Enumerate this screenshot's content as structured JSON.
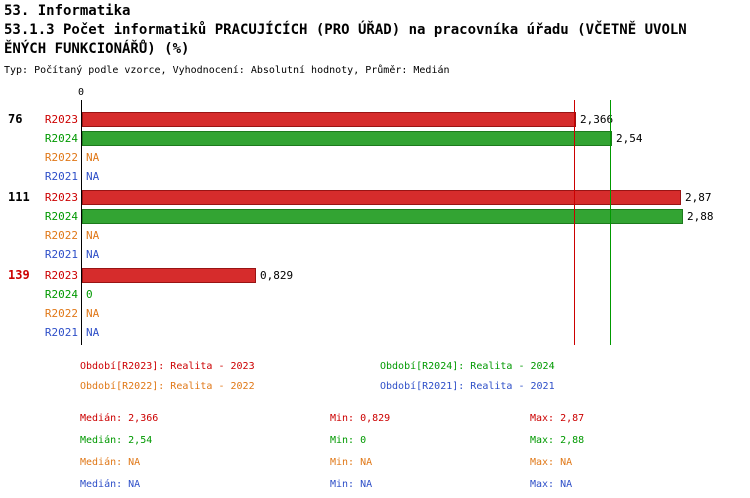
{
  "header": {
    "section": "53. Informatika",
    "title_line1": "53.1.3 Počet informatiků PRACUJÍCÍCH (PRO ÚŘAD) na pracovníka úřadu (VČETNĚ UVOLN",
    "title_line2": "ĚNÝCH FUNKCIONÁŘŮ) (%)",
    "subtitle": "Typ: Počítaný podle vzorce, Vyhodnocení: Absolutní hodnoty, Průměr: Medián"
  },
  "colors": {
    "series": {
      "R2023": {
        "text": "#cc0000",
        "fill": "#d62c2c",
        "border": "#991414"
      },
      "R2024": {
        "text": "#009900",
        "fill": "#33a433",
        "border": "#1d7a1d"
      },
      "R2022": {
        "text": "#e07818",
        "fill": "#e07818",
        "border": "#a85a10"
      },
      "R2021": {
        "text": "#2e4fc8",
        "fill": "#2e4fc8",
        "border": "#1f3a9a"
      }
    },
    "axis": "#000000",
    "text": "#000000",
    "background": "#ffffff"
  },
  "chart_data": {
    "type": "bar",
    "orientation": "horizontal",
    "title": "53.1.3 Počet informatiků PRACUJÍCÍCH (PRO ÚŘAD) na pracovníka úřadu (VČETNĚ UVOLNĚNÝCH FUNKCIONÁŘŮ) (%)",
    "x_axis": {
      "origin_label": "0",
      "min": 0,
      "max_visible": 2.88
    },
    "series_order": [
      "R2023",
      "R2024",
      "R2022",
      "R2021"
    ],
    "groups": [
      {
        "label": "76",
        "label_color": "#000000",
        "values": {
          "R2023": "2,366",
          "R2024": "2,54",
          "R2022": "NA",
          "R2021": "NA"
        }
      },
      {
        "label": "111",
        "label_color": "#000000",
        "values": {
          "R2023": "2,87",
          "R2024": "2,88",
          "R2022": "NA",
          "R2021": "NA"
        }
      },
      {
        "label": "139",
        "label_color": "#cc0000",
        "values": {
          "R2023": "0,829",
          "R2024": "0",
          "R2022": "NA",
          "R2021": "NA"
        }
      }
    ],
    "median_lines": [
      {
        "series": "R2023",
        "value": 2.366
      },
      {
        "series": "R2024",
        "value": 2.54
      }
    ],
    "stats": {
      "R2023": {
        "median": 2.366,
        "min": 0.829,
        "max": 2.87
      },
      "R2024": {
        "median": 2.54,
        "min": 0,
        "max": 2.88
      },
      "R2022": {
        "median": "NA",
        "min": "NA",
        "max": "NA"
      },
      "R2021": {
        "median": "NA",
        "min": "NA",
        "max": "NA"
      }
    }
  },
  "legend": {
    "items": [
      {
        "series": "R2023",
        "label": "Období[R2023]: Realita - 2023"
      },
      {
        "series": "R2024",
        "label": "Období[R2024]: Realita - 2024"
      },
      {
        "series": "R2022",
        "label": "Období[R2022]: Realita - 2022"
      },
      {
        "series": "R2021",
        "label": "Období[R2021]: Realita - 2021"
      }
    ]
  },
  "stats_panel": {
    "rows": [
      {
        "series": "R2023",
        "median": "Medián: 2,366",
        "min": "Min: 0,829",
        "max": "Max: 2,87"
      },
      {
        "series": "R2024",
        "median": "Medián: 2,54",
        "min": "Min: 0",
        "max": "Max: 2,88"
      },
      {
        "series": "R2022",
        "median": "Medián: NA",
        "min": "Min: NA",
        "max": "Max: NA"
      },
      {
        "series": "R2021",
        "median": "Medián: NA",
        "min": "Min: NA",
        "max": "Max: NA"
      }
    ]
  }
}
